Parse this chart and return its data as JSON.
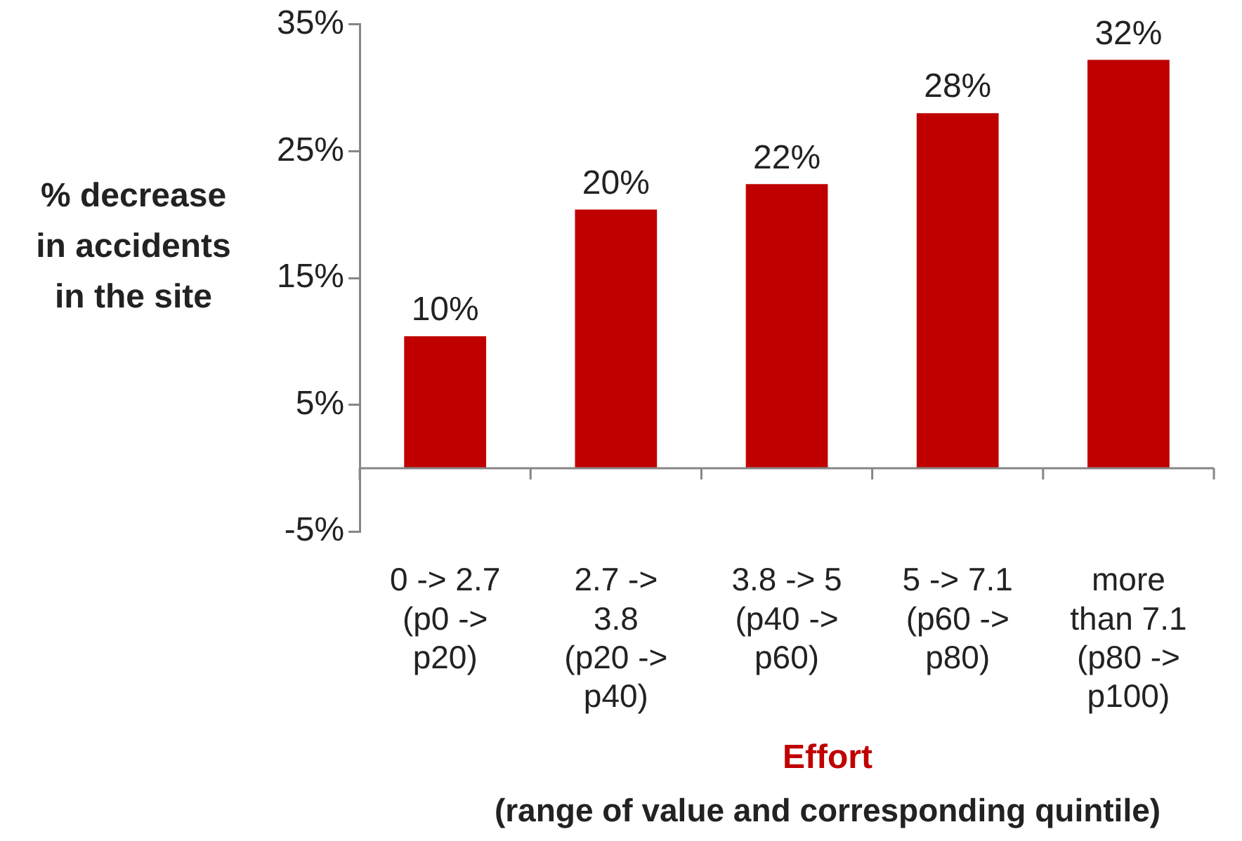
{
  "chart_data": {
    "type": "bar",
    "categories": [
      "0 -> 2.7\n(p0 ->\np20)",
      "2.7 ->\n3.8\n(p20 ->\np40)",
      "3.8 -> 5\n(p40 ->\np60)",
      "5 -> 7.1\n(p60 ->\np80)",
      "more\nthan 7.1\n(p80 ->\np100)"
    ],
    "values": [
      10.4,
      20.4,
      22.4,
      28.0,
      32.2
    ],
    "value_labels": [
      "10%",
      "20%",
      "22%",
      "28%",
      "32%"
    ],
    "color": "#c00000",
    "ylim": [
      -5,
      35
    ],
    "yticks": [
      {
        "value": -5,
        "label": "-5%"
      },
      {
        "value": 5,
        "label": "5%"
      },
      {
        "value": 15,
        "label": "15%"
      },
      {
        "value": 25,
        "label": "25%"
      },
      {
        "value": 35,
        "label": "35%"
      }
    ],
    "ylabel": "% decrease\nin accidents\nin the site",
    "xlabel": "Effort",
    "annotations": [
      "(range of value and corresponding quintile)"
    ]
  }
}
